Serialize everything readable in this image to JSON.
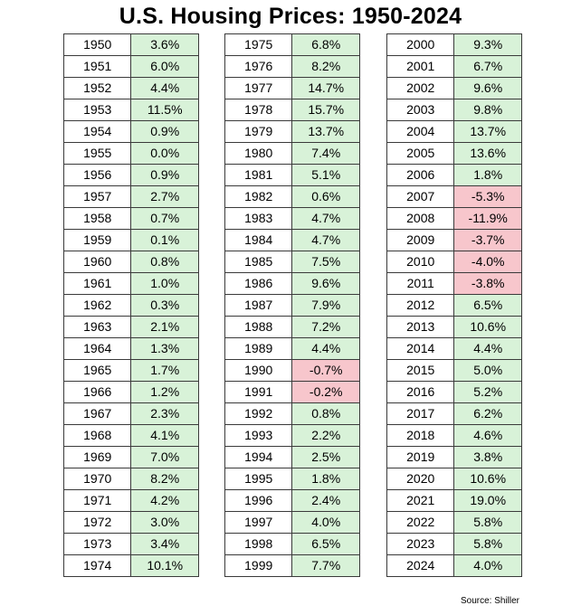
{
  "title": "U.S. Housing Prices: 1950-2024",
  "source": "Source: Shiller",
  "colors": {
    "positive": "#d8f2d8",
    "negative": "#f7c6cc",
    "border": "#3a3a3a"
  },
  "chart_data": {
    "type": "table",
    "title": "U.S. Housing Prices: 1950-2024",
    "columns": [
      {
        "years": [
          "1950",
          "1951",
          "1952",
          "1953",
          "1954",
          "1955",
          "1956",
          "1957",
          "1958",
          "1959",
          "1960",
          "1961",
          "1962",
          "1963",
          "1964",
          "1965",
          "1966",
          "1967",
          "1968",
          "1969",
          "1970",
          "1971",
          "1972",
          "1973",
          "1974"
        ],
        "values": [
          "3.6%",
          "6.0%",
          "4.4%",
          "11.5%",
          "0.9%",
          "0.0%",
          "0.9%",
          "2.7%",
          "0.7%",
          "0.1%",
          "0.8%",
          "1.0%",
          "0.3%",
          "2.1%",
          "1.3%",
          "1.7%",
          "1.2%",
          "2.3%",
          "4.1%",
          "7.0%",
          "8.2%",
          "4.2%",
          "3.0%",
          "3.4%",
          "10.1%"
        ]
      },
      {
        "years": [
          "1975",
          "1976",
          "1977",
          "1978",
          "1979",
          "1980",
          "1981",
          "1982",
          "1983",
          "1984",
          "1985",
          "1986",
          "1987",
          "1988",
          "1989",
          "1990",
          "1991",
          "1992",
          "1993",
          "1994",
          "1995",
          "1996",
          "1997",
          "1998",
          "1999"
        ],
        "values": [
          "6.8%",
          "8.2%",
          "14.7%",
          "15.7%",
          "13.7%",
          "7.4%",
          "5.1%",
          "0.6%",
          "4.7%",
          "4.7%",
          "7.5%",
          "9.6%",
          "7.9%",
          "7.2%",
          "4.4%",
          "-0.7%",
          "-0.2%",
          "0.8%",
          "2.2%",
          "2.5%",
          "1.8%",
          "2.4%",
          "4.0%",
          "6.5%",
          "7.7%"
        ]
      },
      {
        "years": [
          "2000",
          "2001",
          "2002",
          "2003",
          "2004",
          "2005",
          "2006",
          "2007",
          "2008",
          "2009",
          "2010",
          "2011",
          "2012",
          "2013",
          "2014",
          "2015",
          "2016",
          "2017",
          "2018",
          "2019",
          "2020",
          "2021",
          "2022",
          "2023",
          "2024"
        ],
        "values": [
          "9.3%",
          "6.7%",
          "9.6%",
          "9.8%",
          "13.7%",
          "13.6%",
          "1.8%",
          "-5.3%",
          "-11.9%",
          "-3.7%",
          "-4.0%",
          "-3.8%",
          "6.5%",
          "10.6%",
          "4.4%",
          "5.0%",
          "5.2%",
          "6.2%",
          "4.6%",
          "3.8%",
          "10.6%",
          "19.0%",
          "5.8%",
          "5.8%",
          "4.0%"
        ]
      }
    ]
  }
}
